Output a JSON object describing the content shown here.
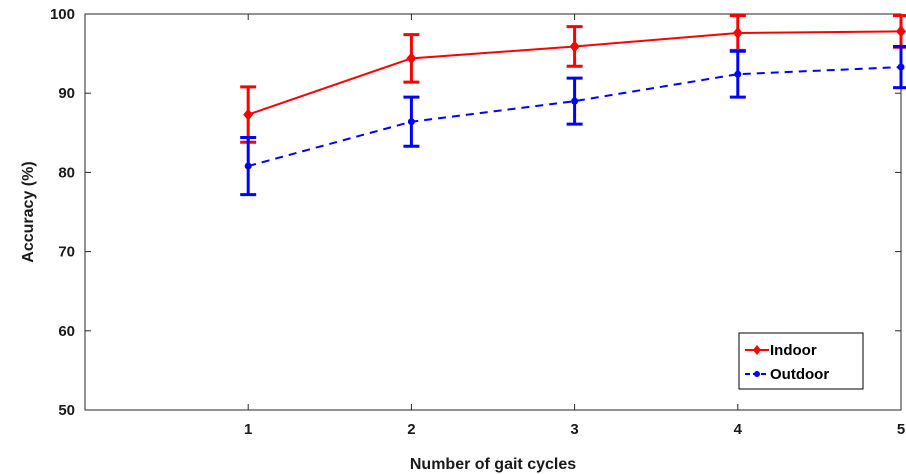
{
  "chart_data": {
    "type": "line",
    "title": "",
    "xlabel": "Number of gait cycles",
    "ylabel": "Accuracy (%)",
    "x": [
      1,
      2,
      3,
      4,
      5
    ],
    "xlim": [
      0,
      5
    ],
    "ylim": [
      50,
      100
    ],
    "xticks": [
      1,
      2,
      3,
      4,
      5
    ],
    "yticks": [
      50,
      60,
      70,
      80,
      90,
      100
    ],
    "grid": false,
    "legend_position": "bottom-right",
    "series": [
      {
        "name": "Indoor",
        "color": "#ff0000",
        "line_style": "solid",
        "marker": "diamond",
        "values": [
          87.3,
          94.4,
          95.9,
          97.6,
          97.8
        ],
        "error": [
          3.5,
          3.0,
          2.5,
          2.2,
          2.0
        ]
      },
      {
        "name": "Outdoor",
        "color": "#0000ff",
        "line_style": "dashed",
        "marker": "circle",
        "values": [
          80.8,
          86.4,
          89.0,
          92.4,
          93.3
        ],
        "error": [
          3.6,
          3.1,
          2.9,
          2.9,
          2.6
        ]
      }
    ]
  }
}
